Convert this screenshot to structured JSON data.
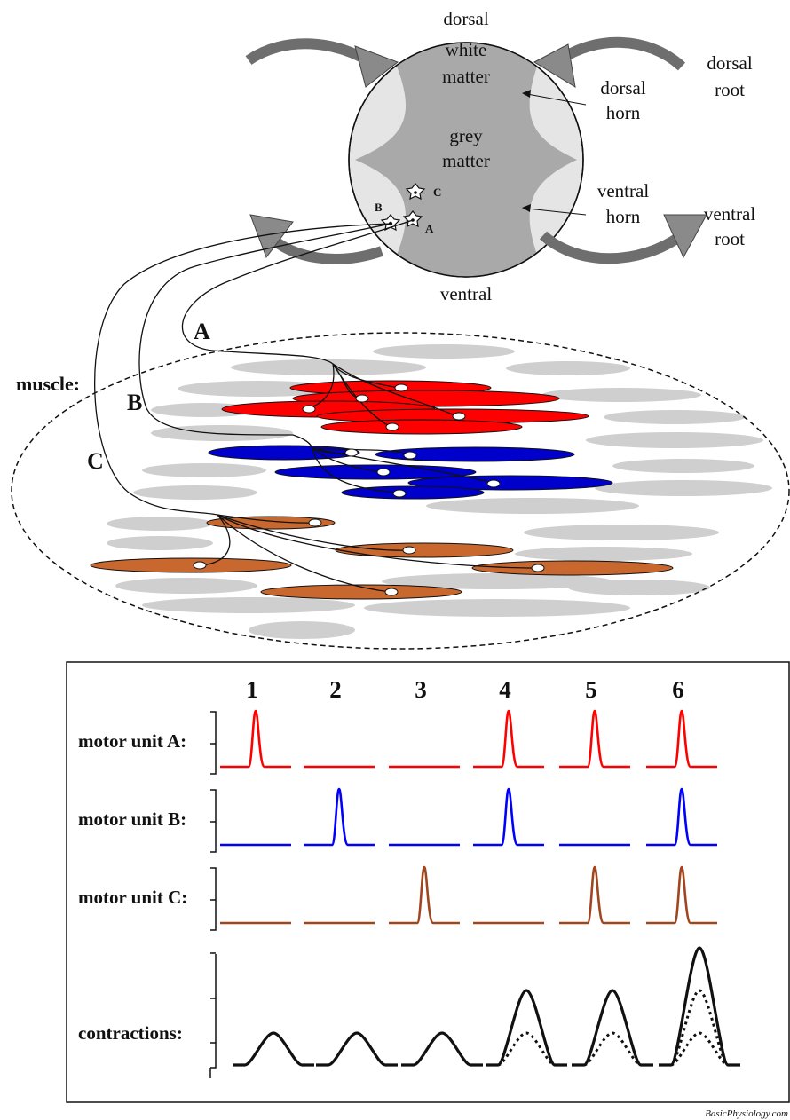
{
  "spinal_cord": {
    "dorsal": "dorsal",
    "white_matter_line1": "white",
    "white_matter_line2": "matter",
    "dorsal_root_line1": "dorsal",
    "dorsal_root_line2": "root",
    "dorsal_horn_line1": "dorsal",
    "dorsal_horn_line2": "horn",
    "grey_matter_line1": "grey",
    "grey_matter_line2": "matter",
    "ventral_horn_line1": "ventral",
    "ventral_horn_line2": "horn",
    "ventral_root_line1": "ventral",
    "ventral_root_line2": "root",
    "ventral": "ventral",
    "neuron_a": "A",
    "neuron_b": "B",
    "neuron_c": "C"
  },
  "muscle": {
    "label": "muscle:",
    "unit_a": "A",
    "unit_b": "B",
    "unit_c": "C"
  },
  "recording": {
    "columns": [
      "1",
      "2",
      "3",
      "4",
      "5",
      "6"
    ],
    "row_a": "motor unit A:",
    "row_b": "motor unit B:",
    "row_c": "motor unit C:",
    "row_contractions": "contractions:",
    "colors": {
      "a": "#ff0000",
      "b": "#0000ff",
      "c": "#a0461e"
    },
    "firing": {
      "a": [
        1,
        0,
        0,
        1,
        1,
        1
      ],
      "b": [
        0,
        1,
        0,
        1,
        0,
        1
      ],
      "c": [
        0,
        0,
        1,
        0,
        1,
        1
      ]
    }
  },
  "credit": "BasicPhysiology.com"
}
